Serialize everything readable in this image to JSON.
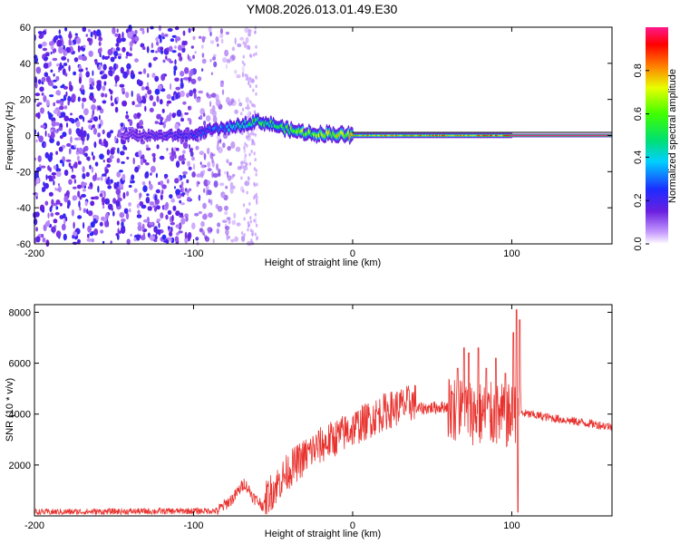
{
  "title": "YM08.2026.013.01.49.E30",
  "chart_data": [
    {
      "type": "heatmap",
      "name": "spectrogram",
      "xlabel": "Height of straight line (km)",
      "ylabel": "Frequency (Hz)",
      "xlim": [
        -200,
        163
      ],
      "ylim": [
        -60,
        60
      ],
      "xticks": [
        -200,
        -100,
        0,
        100
      ],
      "yticks": [
        -60,
        -40,
        -20,
        0,
        20,
        40,
        60
      ],
      "xtick_labels": [
        "-200",
        "-100",
        "0",
        "100"
      ],
      "ytick_labels": [
        "-60",
        "-40",
        "-20",
        "0",
        "20",
        "40",
        "60"
      ],
      "colorbar": {
        "label": "Normalized spectral amplitude",
        "range": [
          0,
          1
        ],
        "ticks": [
          0.0,
          0.2,
          0.4,
          0.6,
          0.8
        ],
        "tick_labels": [
          "0.0",
          "0.2",
          "0.4",
          "0.6",
          "0.8"
        ]
      },
      "noise_region_km": [
        -200,
        -60
      ],
      "carrier_track": [
        {
          "h": -145,
          "f": 0,
          "amp": 0.15
        },
        {
          "h": -100,
          "f": 0,
          "amp": 0.25
        },
        {
          "h": -90,
          "f": 3,
          "amp": 0.3
        },
        {
          "h": -80,
          "f": 4,
          "amp": 0.35
        },
        {
          "h": -70,
          "f": 6,
          "amp": 0.45
        },
        {
          "h": -60,
          "f": 8,
          "amp": 0.55
        },
        {
          "h": -50,
          "f": 6,
          "amp": 0.55
        },
        {
          "h": -40,
          "f": 3,
          "amp": 0.6
        },
        {
          "h": -25,
          "f": 1,
          "amp": 0.65
        },
        {
          "h": -15,
          "f": 1,
          "amp": 0.7
        },
        {
          "h": 0,
          "f": 0,
          "amp": 0.8
        },
        {
          "h": 50,
          "f": 0,
          "amp": 0.85
        },
        {
          "h": 97,
          "f": 0,
          "amp": 0.9
        },
        {
          "h": 100,
          "f": 0,
          "amp": 1.0
        },
        {
          "h": 163,
          "f": 0,
          "amp": 1.0
        }
      ]
    },
    {
      "type": "line",
      "name": "snr",
      "xlabel": "Height of straight line (km)",
      "ylabel": "SNR (10 * v/v)",
      "xlim": [
        -200,
        163
      ],
      "ylim": [
        0,
        8300
      ],
      "xticks": [
        -200,
        -100,
        0,
        100
      ],
      "yticks": [
        2000,
        4000,
        6000,
        8000
      ],
      "xtick_labels": [
        "-200",
        "-100",
        "0",
        "100"
      ],
      "ytick_labels": [
        "2000",
        "4000",
        "6000",
        "8000"
      ],
      "series_color": "#e8322e",
      "envelope": [
        {
          "h": -200,
          "snr": 150
        },
        {
          "h": -85,
          "snr": 200
        },
        {
          "h": -75,
          "snr": 700
        },
        {
          "h": -68,
          "snr": 1300
        },
        {
          "h": -62,
          "snr": 700
        },
        {
          "h": -55,
          "snr": 350
        },
        {
          "h": -40,
          "snr": 1500
        },
        {
          "h": -25,
          "snr": 2300
        },
        {
          "h": -10,
          "snr": 2800
        },
        {
          "h": 5,
          "snr": 3300
        },
        {
          "h": 20,
          "snr": 3800
        },
        {
          "h": 40,
          "snr": 4200
        },
        {
          "h": 60,
          "snr": 4300
        },
        {
          "h": 80,
          "snr": 4000
        },
        {
          "h": 100,
          "snr": 3900
        },
        {
          "h": 105,
          "snr": 4050
        },
        {
          "h": 130,
          "snr": 3800
        },
        {
          "h": 163,
          "snr": 3500
        }
      ],
      "spikes": [
        {
          "h": 63,
          "snr": 4800
        },
        {
          "h": 66,
          "snr": 5800
        },
        {
          "h": 70,
          "snr": 6600
        },
        {
          "h": 73,
          "snr": 6400
        },
        {
          "h": 79,
          "snr": 6600
        },
        {
          "h": 84,
          "snr": 5800
        },
        {
          "h": 90,
          "snr": 6200
        },
        {
          "h": 96,
          "snr": 5600
        },
        {
          "h": 101,
          "snr": 7200
        },
        {
          "h": 103,
          "snr": 8100
        },
        {
          "h": 105,
          "snr": 7700
        }
      ]
    }
  ]
}
